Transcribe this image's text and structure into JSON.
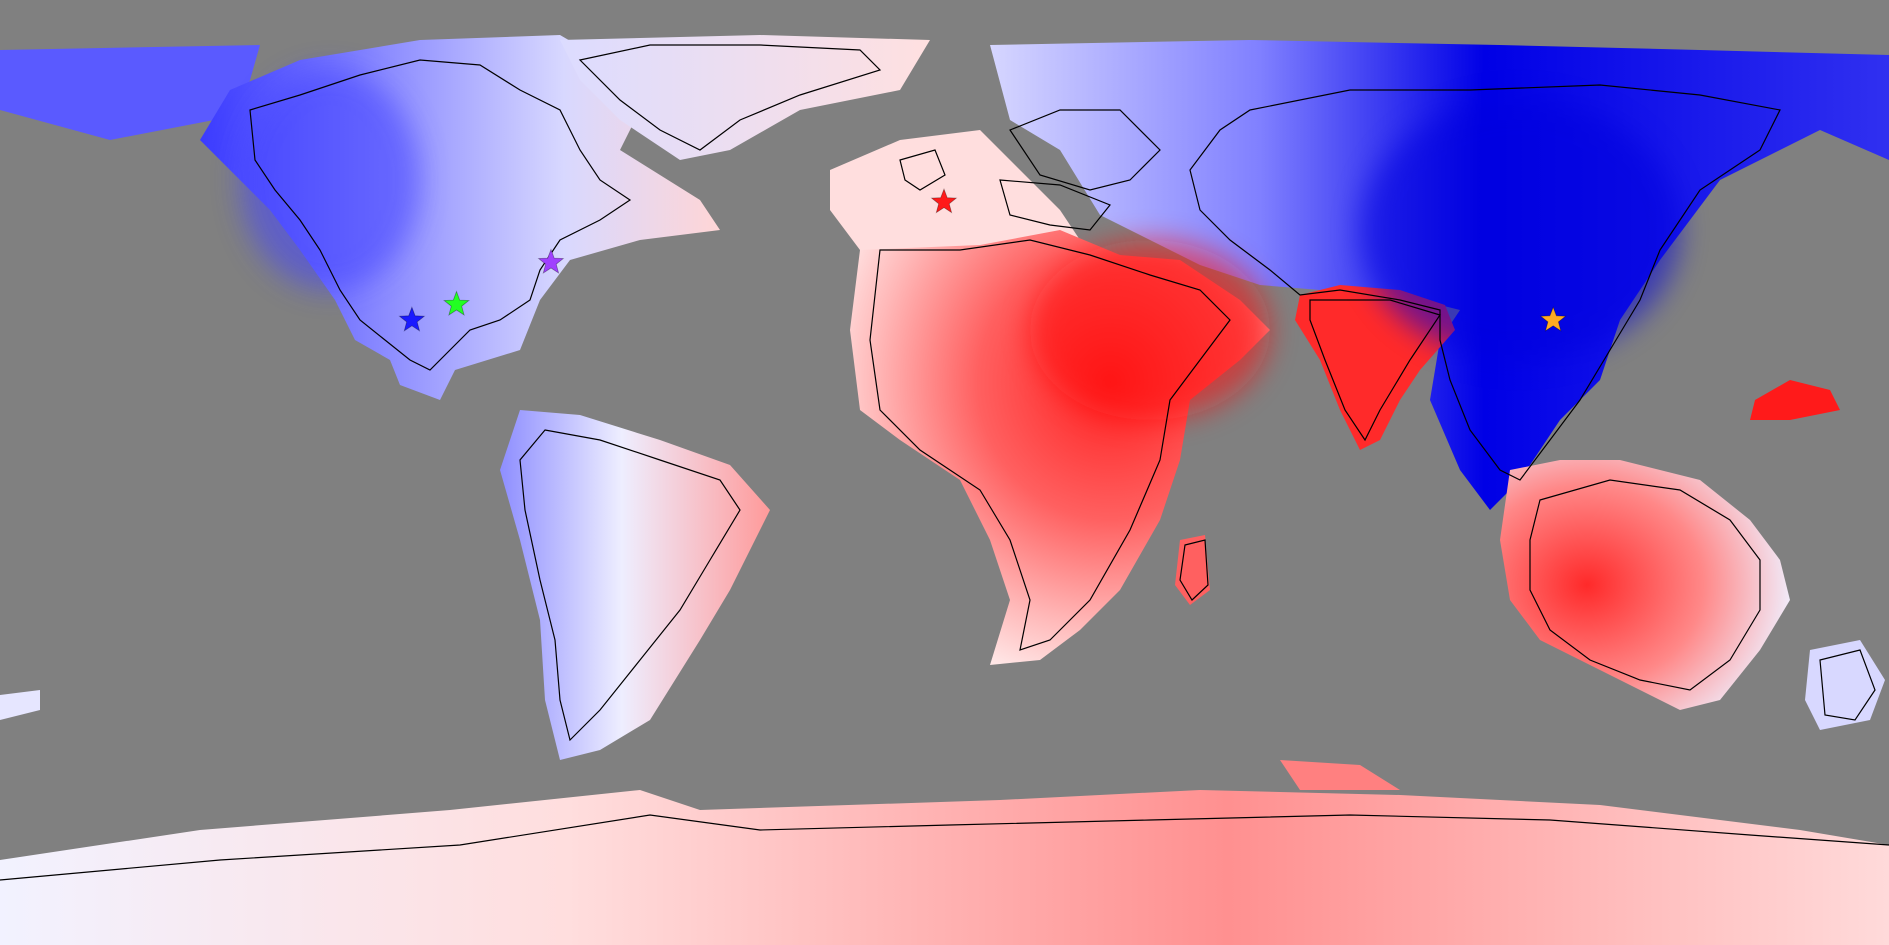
{
  "map": {
    "projection": "equirectangular",
    "ocean_color": "#808080",
    "coastline_color": "#000000",
    "colors": {
      "strong_red": "#ff2020",
      "mid_red": "#ff7777",
      "light_red": "#ffcccc",
      "white": "#f4f4ff",
      "light_blue": "#c8c8ff",
      "mid_blue": "#7a7aff",
      "strong_blue": "#0000e6"
    },
    "markers": [
      {
        "name": "red-star-marker",
        "icon": "star-icon",
        "color": "#ff1a1a",
        "lon": -0.1,
        "lat": 51.5
      },
      {
        "name": "purple-star-marker",
        "icon": "star-icon",
        "color": "#a040ff",
        "lon": -75,
        "lat": 40
      },
      {
        "name": "green-star-marker",
        "icon": "star-icon",
        "color": "#22ff22",
        "lon": -93,
        "lat": 32
      },
      {
        "name": "blue-star-marker",
        "icon": "star-icon",
        "color": "#1a1aff",
        "lon": -101.5,
        "lat": 29
      },
      {
        "name": "orange-star-marker",
        "icon": "star-icon",
        "color": "#ffaa22",
        "lon": 116,
        "lat": 29
      }
    ]
  }
}
